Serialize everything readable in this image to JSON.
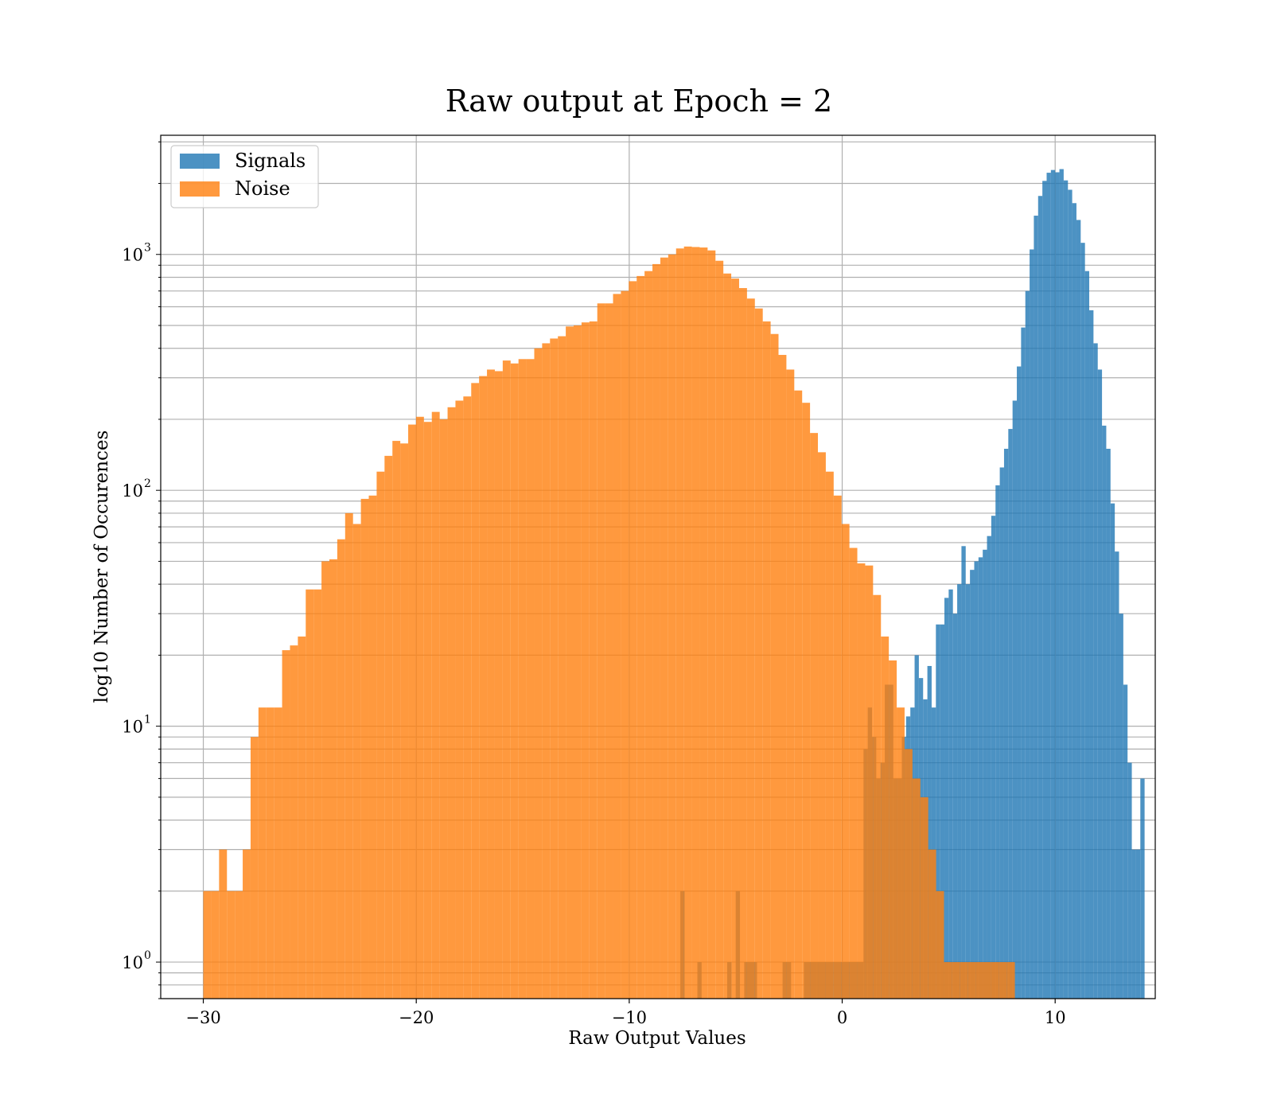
{
  "chart_data": {
    "type": "bar",
    "title": "Raw output at Epoch = 2",
    "xlabel": "Raw Output Values",
    "ylabel": "log10 Number of Occurences",
    "xscale": "linear",
    "yscale": "log",
    "xlim": [
      -32,
      14.7
    ],
    "ylim": [
      0.7,
      3200
    ],
    "x_ticks": [
      {
        "value": -30,
        "label": "−30"
      },
      {
        "value": -20,
        "label": "−20"
      },
      {
        "value": -10,
        "label": "−10"
      },
      {
        "value": 0,
        "label": "0"
      },
      {
        "value": 10,
        "label": "10"
      }
    ],
    "y_ticks": [
      {
        "value": 1,
        "label": "10",
        "exp": "0"
      },
      {
        "value": 10,
        "label": "10",
        "exp": "1"
      },
      {
        "value": 100,
        "label": "10",
        "exp": "2"
      },
      {
        "value": 1000,
        "label": "10",
        "exp": "3"
      }
    ],
    "grid": true,
    "legend_position": "top-left",
    "series": [
      {
        "name": "Signals",
        "color": "#1f77b4",
        "bin_width": 0.2,
        "bins": [
          [
            -7.6,
            0.0,
            2
          ],
          [
            -6.8,
            0.2,
            1
          ],
          [
            -5.4,
            0.2,
            1
          ],
          [
            -5.0,
            0.2,
            2
          ],
          [
            -4.6,
            0.6,
            1
          ],
          [
            -2.8,
            0.4,
            1
          ],
          [
            -1.8,
            0.6,
            1
          ],
          [
            -1.2,
            0.8,
            1
          ],
          [
            -0.4,
            1.4,
            1
          ],
          [
            1.0,
            0.2,
            8
          ],
          [
            1.2,
            0.2,
            12
          ],
          [
            1.4,
            0.2,
            9
          ],
          [
            1.6,
            0.2,
            6
          ],
          [
            1.8,
            0.2,
            7
          ],
          [
            2.0,
            0.2,
            15
          ],
          [
            2.2,
            0.2,
            15
          ],
          [
            2.4,
            0.2,
            6
          ],
          [
            2.6,
            0.2,
            6
          ],
          [
            2.8,
            0.2,
            9
          ],
          [
            3.0,
            0.2,
            11
          ],
          [
            3.2,
            0.2,
            12
          ],
          [
            3.4,
            0.2,
            20
          ],
          [
            3.6,
            0.2,
            16
          ],
          [
            3.8,
            0.2,
            13
          ],
          [
            4.0,
            0.2,
            18
          ],
          [
            4.2,
            0.2,
            12
          ],
          [
            4.4,
            0.2,
            27
          ],
          [
            4.6,
            0.2,
            27
          ],
          [
            4.8,
            0.2,
            35
          ],
          [
            5.0,
            0.2,
            38
          ],
          [
            5.2,
            0.2,
            30
          ],
          [
            5.4,
            0.2,
            40
          ],
          [
            5.6,
            0.2,
            58
          ],
          [
            5.8,
            0.2,
            40
          ],
          [
            6.0,
            0.2,
            46
          ],
          [
            6.2,
            0.2,
            50
          ],
          [
            6.4,
            0.2,
            52
          ],
          [
            6.6,
            0.2,
            56
          ],
          [
            6.8,
            0.2,
            64
          ],
          [
            7.0,
            0.2,
            78
          ],
          [
            7.2,
            0.2,
            105
          ],
          [
            7.4,
            0.2,
            125
          ],
          [
            7.6,
            0.2,
            150
          ],
          [
            7.8,
            0.2,
            182
          ],
          [
            8.0,
            0.2,
            240
          ],
          [
            8.2,
            0.2,
            335
          ],
          [
            8.4,
            0.2,
            490
          ],
          [
            8.6,
            0.2,
            700
          ],
          [
            8.8,
            0.2,
            1050
          ],
          [
            9.0,
            0.2,
            1460
          ],
          [
            9.2,
            0.2,
            1770
          ],
          [
            9.4,
            0.2,
            2050
          ],
          [
            9.6,
            0.2,
            2220
          ],
          [
            9.8,
            0.2,
            2280
          ],
          [
            10.0,
            0.2,
            2230
          ],
          [
            10.2,
            0.2,
            2300
          ],
          [
            10.4,
            0.2,
            2060
          ],
          [
            10.6,
            0.2,
            1880
          ],
          [
            10.8,
            0.2,
            1650
          ],
          [
            11.0,
            0.2,
            1400
          ],
          [
            11.2,
            0.2,
            1120
          ],
          [
            11.4,
            0.2,
            850
          ],
          [
            11.6,
            0.2,
            580
          ],
          [
            11.8,
            0.2,
            420
          ],
          [
            12.0,
            0.2,
            325
          ],
          [
            12.2,
            0.2,
            188
          ],
          [
            12.4,
            0.2,
            150
          ],
          [
            12.6,
            0.2,
            88
          ],
          [
            12.8,
            0.2,
            55
          ],
          [
            13.0,
            0.2,
            30
          ],
          [
            13.2,
            0.2,
            15
          ],
          [
            13.4,
            0.2,
            7
          ],
          [
            13.6,
            0.2,
            3
          ],
          [
            13.8,
            0.2,
            3
          ],
          [
            14.0,
            0.2,
            6
          ]
        ]
      },
      {
        "name": "Noise",
        "color": "#ff7f0e",
        "bin_width": 0.37,
        "values": [
          2,
          2,
          3,
          2,
          2,
          3,
          9,
          12,
          12,
          12,
          21,
          22,
          24,
          38,
          38,
          50,
          51,
          62,
          80,
          72,
          92,
          95,
          120,
          140,
          162,
          158,
          190,
          205,
          195,
          215,
          200,
          225,
          240,
          250,
          285,
          305,
          325,
          320,
          355,
          345,
          360,
          360,
          400,
          420,
          440,
          450,
          495,
          500,
          515,
          520,
          620,
          620,
          680,
          700,
          770,
          810,
          850,
          910,
          970,
          1000,
          1060,
          1080,
          1075,
          1070,
          1040,
          940,
          830,
          790,
          720,
          650,
          590,
          520,
          460,
          375,
          325,
          265,
          235,
          175,
          145,
          120,
          95,
          72,
          57,
          49,
          48,
          36,
          24,
          19,
          12,
          8,
          6,
          5,
          3,
          2,
          1,
          1,
          1,
          1,
          1,
          1,
          1,
          1,
          1
        ]
      }
    ]
  }
}
